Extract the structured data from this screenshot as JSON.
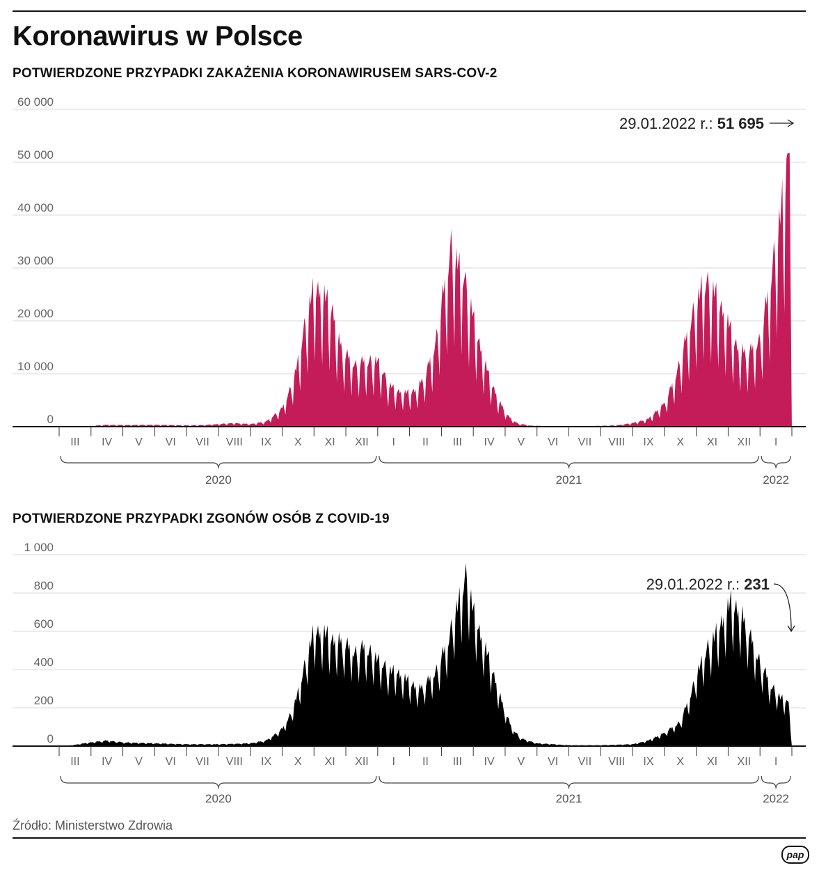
{
  "header": {
    "title": "Koronawirus w Polsce"
  },
  "source": "Źródło: Ministerstwo Zdrowia",
  "logo": "pap",
  "chart_data": [
    {
      "type": "area",
      "title": "POTWIERDZONE PRZYPADKI ZAKAŻENIA KORONAWIRUSEM SARS-COV-2",
      "color": "#c41c58",
      "ylim": [
        0,
        60000
      ],
      "yticks": [
        0,
        10000,
        20000,
        30000,
        40000,
        50000,
        60000
      ],
      "ytick_labels": [
        "0",
        "10 000",
        "20 000",
        "30 000",
        "40 000",
        "50 000",
        "60 000"
      ],
      "months": [
        "III",
        "IV",
        "V",
        "VI",
        "VII",
        "VIII",
        "IX",
        "X",
        "XI",
        "XII",
        "I",
        "II",
        "III",
        "IV",
        "V",
        "VI",
        "VII",
        "VIII",
        "IX",
        "X",
        "XI",
        "XII",
        "I"
      ],
      "years": [
        {
          "label": "2020",
          "from": 0,
          "to": 9
        },
        {
          "label": "2021",
          "from": 10,
          "to": 21
        },
        {
          "label": "2022",
          "from": 22,
          "to": 22
        }
      ],
      "annotation": {
        "date": "29.01.2022 r.:",
        "value": "51 695",
        "y": 51695
      },
      "anchors": [
        [
          0.2,
          0
        ],
        [
          1,
          150
        ],
        [
          1.5,
          350
        ],
        [
          2,
          300
        ],
        [
          3,
          350
        ],
        [
          4,
          250
        ],
        [
          4.5,
          300
        ],
        [
          5,
          500
        ],
        [
          5.5,
          700
        ],
        [
          6,
          500
        ],
        [
          6.5,
          1000
        ],
        [
          7,
          3500
        ],
        [
          7.3,
          8000
        ],
        [
          7.5,
          13000
        ],
        [
          7.8,
          22000
        ],
        [
          8.0,
          27500
        ],
        [
          8.3,
          25500
        ],
        [
          8.6,
          22000
        ],
        [
          8.8,
          16000
        ],
        [
          9.0,
          14000
        ],
        [
          9.3,
          12000
        ],
        [
          9.6,
          12500
        ],
        [
          10.0,
          13000
        ],
        [
          10.3,
          8500
        ],
        [
          10.6,
          7000
        ],
        [
          10.9,
          6500
        ],
        [
          11.2,
          7000
        ],
        [
          11.5,
          10000
        ],
        [
          11.8,
          16000
        ],
        [
          12.1,
          27000
        ],
        [
          12.3,
          35000
        ],
        [
          12.6,
          31000
        ],
        [
          12.9,
          24000
        ],
        [
          13.2,
          16000
        ],
        [
          13.5,
          9500
        ],
        [
          13.8,
          5000
        ],
        [
          14.1,
          2000
        ],
        [
          14.4,
          600
        ],
        [
          14.8,
          200
        ],
        [
          15.5,
          100
        ],
        [
          16.5,
          100
        ],
        [
          17.5,
          250
        ],
        [
          18,
          700
        ],
        [
          18.5,
          1500
        ],
        [
          19.0,
          4500
        ],
        [
          19.3,
          9000
        ],
        [
          19.6,
          15000
        ],
        [
          19.9,
          22000
        ],
        [
          20.2,
          28000
        ],
        [
          20.6,
          26000
        ],
        [
          21.0,
          20000
        ],
        [
          21.3,
          15000
        ],
        [
          21.6,
          14000
        ],
        [
          22.0,
          17000
        ],
        [
          22.3,
          27000
        ],
        [
          22.6,
          40000
        ],
        [
          22.85,
          51695
        ],
        [
          22.95,
          51695
        ],
        [
          23.0,
          0
        ]
      ],
      "weekend_dip": 0.55
    },
    {
      "type": "area",
      "title": "POTWIERDZONE PRZYPADKI ZGONÓW OSÓB Z COVID-19",
      "color": "#000000",
      "ylim": [
        0,
        1000
      ],
      "yticks": [
        0,
        200,
        400,
        600,
        800,
        1000
      ],
      "ytick_labels": [
        "0",
        "200",
        "400",
        "600",
        "800",
        "1 000"
      ],
      "months": [
        "III",
        "IV",
        "V",
        "VI",
        "VII",
        "VIII",
        "IX",
        "X",
        "XI",
        "XII",
        "I",
        "II",
        "III",
        "IV",
        "V",
        "VI",
        "VII",
        "VIII",
        "IX",
        "X",
        "XI",
        "XII",
        "I"
      ],
      "years": [
        {
          "label": "2020",
          "from": 0,
          "to": 9
        },
        {
          "label": "2021",
          "from": 10,
          "to": 21
        },
        {
          "label": "2022",
          "from": 22,
          "to": 22
        }
      ],
      "annotation": {
        "date": "29.01.2022 r.:",
        "value": "231",
        "y": 231
      },
      "anchors": [
        [
          0.2,
          0
        ],
        [
          1,
          20
        ],
        [
          1.5,
          30
        ],
        [
          2,
          20
        ],
        [
          3,
          15
        ],
        [
          4,
          10
        ],
        [
          5,
          10
        ],
        [
          6,
          15
        ],
        [
          6.5,
          30
        ],
        [
          7,
          90
        ],
        [
          7.3,
          180
        ],
        [
          7.6,
          350
        ],
        [
          8.0,
          620
        ],
        [
          8.3,
          600
        ],
        [
          8.6,
          560
        ],
        [
          9.0,
          540
        ],
        [
          9.3,
          500
        ],
        [
          9.6,
          520
        ],
        [
          10.0,
          470
        ],
        [
          10.3,
          400
        ],
        [
          10.6,
          400
        ],
        [
          10.9,
          350
        ],
        [
          11.3,
          300
        ],
        [
          11.6,
          350
        ],
        [
          11.9,
          420
        ],
        [
          12.2,
          550
        ],
        [
          12.5,
          760
        ],
        [
          12.8,
          900
        ],
        [
          13.0,
          720
        ],
        [
          13.3,
          560
        ],
        [
          13.6,
          400
        ],
        [
          13.9,
          230
        ],
        [
          14.2,
          100
        ],
        [
          14.5,
          40
        ],
        [
          15,
          15
        ],
        [
          16,
          5
        ],
        [
          17,
          5
        ],
        [
          18,
          10
        ],
        [
          18.5,
          30
        ],
        [
          19,
          70
        ],
        [
          19.5,
          130
        ],
        [
          19.8,
          260
        ],
        [
          20.1,
          430
        ],
        [
          20.5,
          560
        ],
        [
          20.9,
          700
        ],
        [
          21.1,
          760
        ],
        [
          21.4,
          700
        ],
        [
          21.7,
          580
        ],
        [
          22.0,
          450
        ],
        [
          22.3,
          330
        ],
        [
          22.6,
          270
        ],
        [
          22.9,
          231
        ],
        [
          23.0,
          0
        ]
      ],
      "weekend_dip": 0.35
    }
  ]
}
